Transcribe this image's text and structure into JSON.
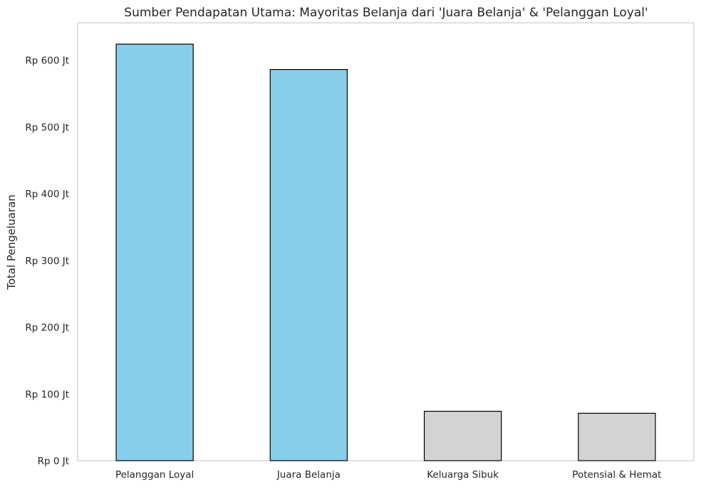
{
  "chart_data": {
    "type": "bar",
    "title": "Sumber Pendapatan Utama: Mayoritas Belanja dari 'Juara Belanja' & 'Pelanggan Loyal'",
    "xlabel": "",
    "ylabel": "Total Pengeluaran",
    "categories": [
      "Pelanggan Loyal",
      "Juara Belanja",
      "Keluarga Sibuk",
      "Potensial & Hemat"
    ],
    "values": [
      624,
      586,
      74,
      71
    ],
    "unit": "Jt",
    "ylim": [
      0,
      656
    ],
    "yticks": [
      0,
      100,
      200,
      300,
      400,
      500,
      600
    ],
    "ytick_labels": [
      "Rp 0 Jt",
      "Rp 100 Jt",
      "Rp 200 Jt",
      "Rp 300 Jt",
      "Rp 400 Jt",
      "Rp 500 Jt",
      "Rp 600 Jt"
    ],
    "bar_colors": [
      "#87ceeb",
      "#87ceeb",
      "#d3d3d3",
      "#d3d3d3"
    ],
    "bar_edge_color": "#000000",
    "grid": false,
    "legend": "none"
  }
}
